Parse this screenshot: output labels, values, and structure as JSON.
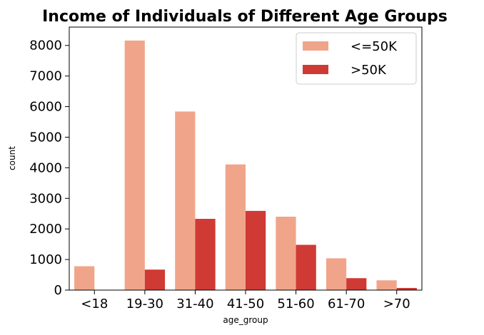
{
  "chart_data": {
    "type": "bar",
    "title": "Income of Individuals of Different Age Groups",
    "xlabel": "age_group",
    "ylabel": "count",
    "categories": [
      "<18",
      "19-30",
      "31-40",
      "41-50",
      "51-60",
      "61-70",
      ">70"
    ],
    "series": [
      {
        "name": "<=50K",
        "color": "#f0a58a",
        "values": [
          780,
          8160,
          5840,
          4110,
          2400,
          1040,
          320
        ]
      },
      {
        "name": ">50K",
        "color": "#cf3a35",
        "values": [
          0,
          670,
          2330,
          2590,
          1480,
          390,
          70
        ]
      }
    ],
    "ylim": [
      0,
      8600
    ],
    "yticks": [
      0,
      1000,
      2000,
      3000,
      4000,
      5000,
      6000,
      7000,
      8000
    ],
    "legend_position": "top-right",
    "grid": false
  }
}
